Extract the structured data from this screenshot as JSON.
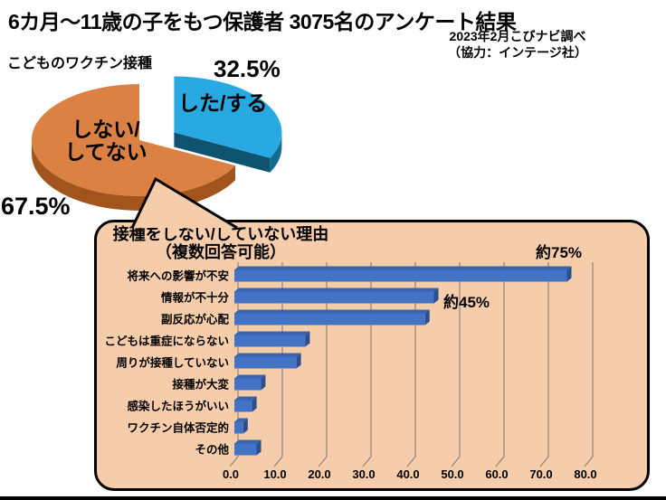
{
  "page": {
    "title": "6カ月～11歳の子をもつ保護者 3075名のアンケート結果",
    "source_line1": "2023年2月こびナビ調べ",
    "source_line2": "（協力：インテージ社）"
  },
  "pie_section": {
    "label": "こどものワクチン接種"
  },
  "callout": {
    "title_line1": "接種をしない/していない理由",
    "title_line2": "（複数回答可能）",
    "fill": "#F6CDAB"
  },
  "chart_data": [
    {
      "type": "pie",
      "style": "3d-exploded",
      "title": "こどものワクチン接種",
      "start_angle_deg": 0,
      "slices": [
        {
          "label": "した/する",
          "value": 32.5,
          "display": "32.5%",
          "color_top": "#29A9E1",
          "color_side": "#136B90",
          "exploded": true
        },
        {
          "label": "しない/してない",
          "label_lines": [
            "しない/",
            "してない"
          ],
          "value": 67.5,
          "display": "67.5%",
          "color_top": "#DB8143",
          "color_side": "#A1551D",
          "exploded": false
        }
      ]
    },
    {
      "type": "bar",
      "orientation": "horizontal",
      "title": "接種をしない/していない理由（複数回答可能）",
      "categories": [
        "将来への影響が不安",
        "情報が不十分",
        "副反応が心配",
        "こどもは重症にならない",
        "周りが接種していない",
        "接種が大変",
        "感染したほうがいい",
        "ワクチン自体否定的",
        "その他"
      ],
      "values": [
        75,
        45,
        43,
        16,
        14,
        6,
        4,
        2,
        5
      ],
      "annotations": [
        {
          "target": "将来への影響が不安",
          "text": "約75%"
        },
        {
          "target": "情報が不十分",
          "text": "約45%"
        }
      ],
      "x_ticks": [
        "0.0",
        "10.0",
        "20.0",
        "30.0",
        "40.0",
        "50.0",
        "60.0",
        "70.0",
        "80.0"
      ],
      "xlim": [
        0,
        80
      ],
      "grid": true,
      "bar_color": "#4472C4",
      "bar_top_color": "#3A63AE",
      "bar_side_color": "#2C4E8E",
      "grid_color": "#8F857C"
    }
  ]
}
